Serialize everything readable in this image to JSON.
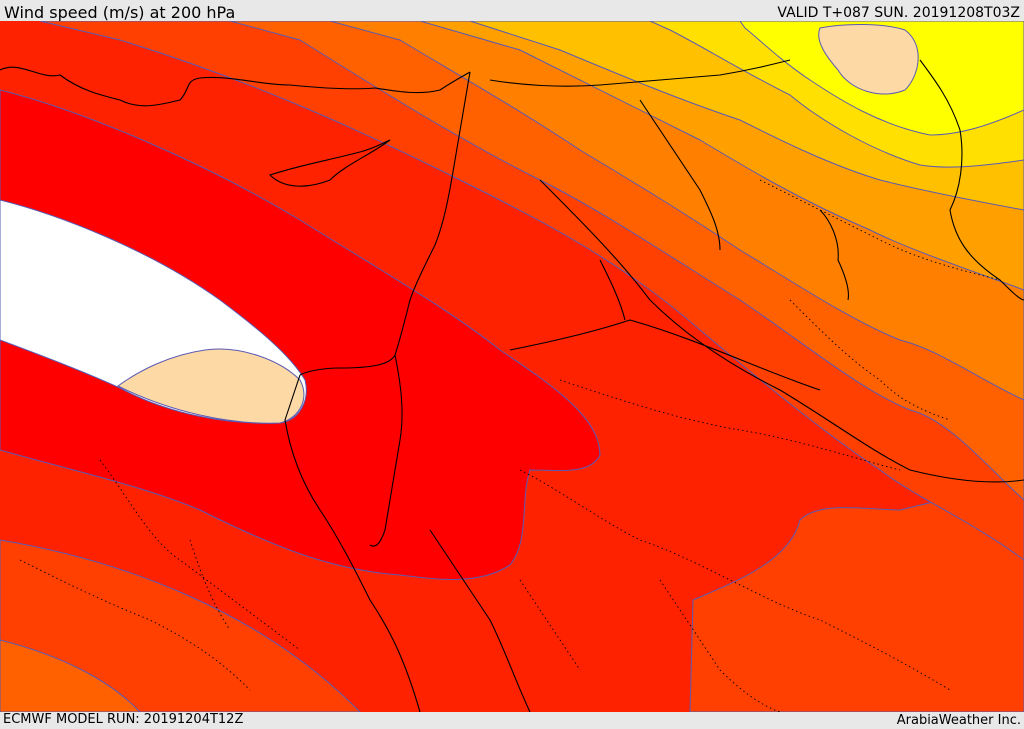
{
  "header": {
    "title": "Wind speed (m/s) at 200 hPa",
    "valid": "VALID T+087 SUN. 20191208T03Z"
  },
  "footer": {
    "model_run": "ECMWF MODEL RUN: 20191204T12Z",
    "credit": "ArabiaWeather Inc."
  },
  "map": {
    "variable": "wind speed",
    "level": "200 hPa",
    "units": "m/s",
    "palette": {
      "white_core": "#ffffff",
      "red": "#ff0000",
      "red_orange": "#ff2200",
      "orange_red": "#ff4000",
      "orange": "#ff6000",
      "light_orange": "#ff8000",
      "amber": "#ffa000",
      "yellow_orange": "#ffc000",
      "gold": "#ffe000",
      "yellow": "#ffff00",
      "tan": "#fdd9a6",
      "contour": "#5a5ab4"
    }
  }
}
